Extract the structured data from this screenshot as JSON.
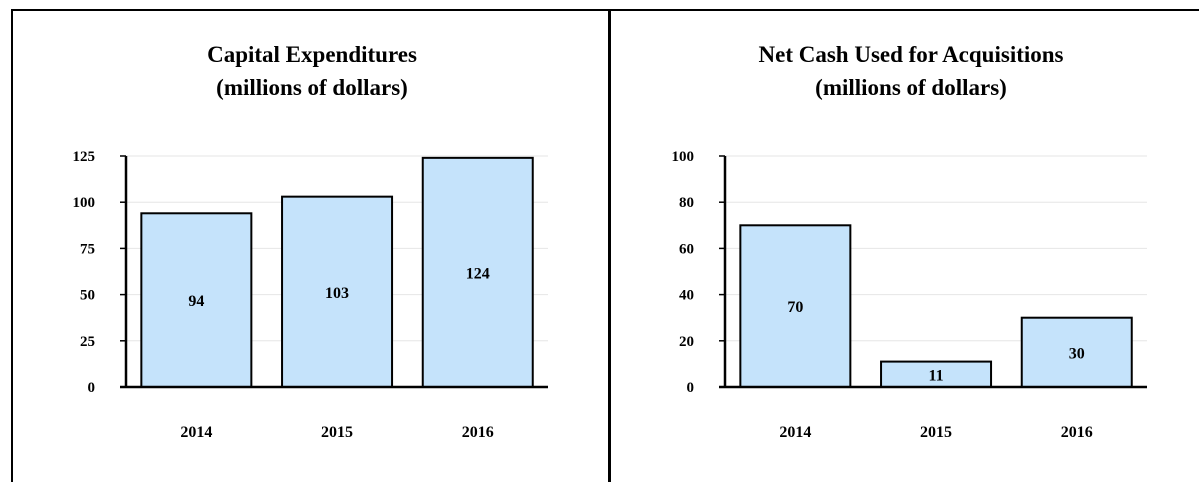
{
  "chart_data": [
    {
      "type": "bar",
      "title": "Capital Expenditures",
      "subtitle": "(millions of dollars)",
      "categories": [
        "2014",
        "2015",
        "2016"
      ],
      "values": [
        94,
        103,
        124
      ],
      "data_labels": [
        "94",
        "103",
        "124"
      ],
      "ylim": [
        0,
        125
      ],
      "yticks": [
        "0",
        "25",
        "50",
        "75",
        "100",
        "125"
      ],
      "grid": true,
      "bar_color": "#c5e3fb"
    },
    {
      "type": "bar",
      "title": "Net Cash Used for Acquisitions",
      "subtitle": "(millions of dollars)",
      "categories": [
        "2014",
        "2015",
        "2016"
      ],
      "values": [
        70,
        11,
        30
      ],
      "data_labels": [
        "70",
        "11",
        "30"
      ],
      "ylim": [
        0,
        100
      ],
      "yticks": [
        "0",
        "20",
        "40",
        "60",
        "80",
        "100"
      ],
      "grid": true,
      "bar_color": "#c5e3fb"
    }
  ]
}
